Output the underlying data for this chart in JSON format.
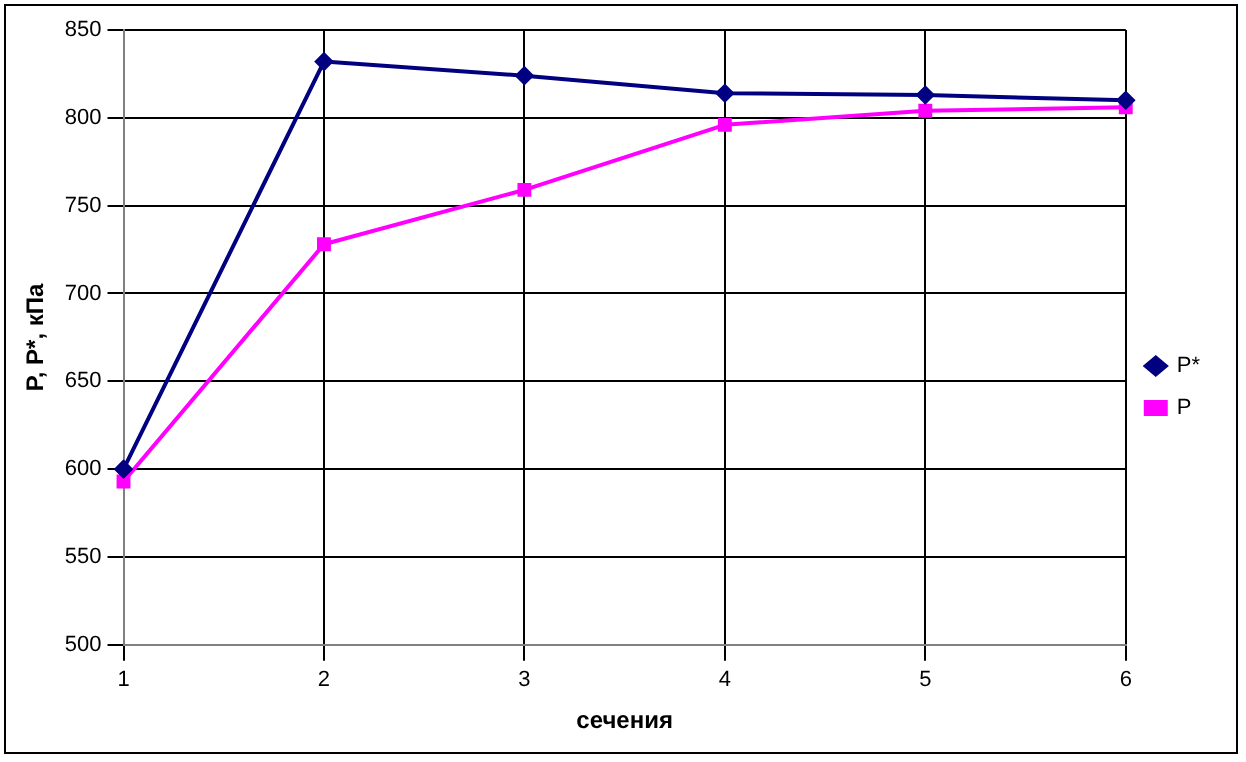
{
  "chart_data": {
    "type": "line",
    "xlabel": "сечения",
    "ylabel": "P, P*, кПа",
    "categories": [
      "1",
      "2",
      "3",
      "4",
      "5",
      "6"
    ],
    "series": [
      {
        "name": "P*",
        "color": "#000080",
        "marker": "diamond",
        "values": [
          600,
          832,
          824,
          814,
          813,
          810
        ]
      },
      {
        "name": "P",
        "color": "#ff00ff",
        "marker": "square",
        "values": [
          593,
          728,
          759,
          796,
          804,
          806
        ]
      }
    ],
    "ylim": [
      500,
      850
    ],
    "yticks": [
      500,
      550,
      600,
      650,
      700,
      750,
      800,
      850
    ],
    "grid": true,
    "legend": "right"
  }
}
